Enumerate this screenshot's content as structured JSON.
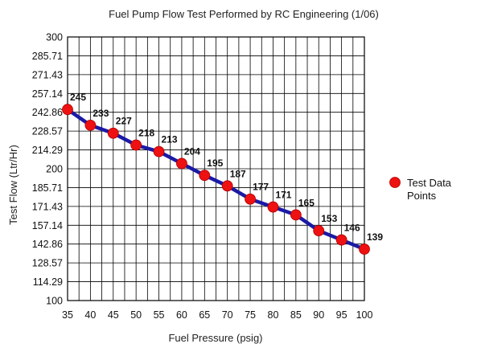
{
  "chart_data": {
    "type": "line",
    "title": "Fuel Pump Flow Test Performed by RC Engineering (1/06)",
    "xlabel": "Fuel Pressure (psig)",
    "ylabel": "Test Flow (Ltr/Hr)",
    "xlim": [
      35,
      100
    ],
    "ylim": [
      100,
      300
    ],
    "x_ticks": [
      "35",
      "40",
      "45",
      "50",
      "55",
      "60",
      "65",
      "70",
      "75",
      "80",
      "85",
      "90",
      "95",
      "100"
    ],
    "y_ticks": [
      "100",
      "114.29",
      "128.57",
      "142.86",
      "157.14",
      "171.43",
      "185.71",
      "200",
      "214.29",
      "228.57",
      "242.86",
      "257.14",
      "271.43",
      "285.71",
      "300"
    ],
    "x_minor_gridlines": true,
    "grid": true,
    "legend_position": "right",
    "series": [
      {
        "name": "Test Data Points",
        "x": [
          35,
          40,
          45,
          50,
          55,
          60,
          65,
          70,
          75,
          80,
          85,
          90,
          95,
          100
        ],
        "values": [
          245,
          233,
          227,
          218,
          213,
          204,
          195,
          187,
          177,
          171,
          165,
          153,
          146,
          139
        ],
        "labels": [
          "245",
          "233",
          "227",
          "218",
          "213",
          "204",
          "195",
          "187",
          "177",
          "171",
          "165",
          "153",
          "146",
          "139"
        ],
        "line_color": "#1a1aa6",
        "marker_color": "#ee1111"
      }
    ]
  }
}
